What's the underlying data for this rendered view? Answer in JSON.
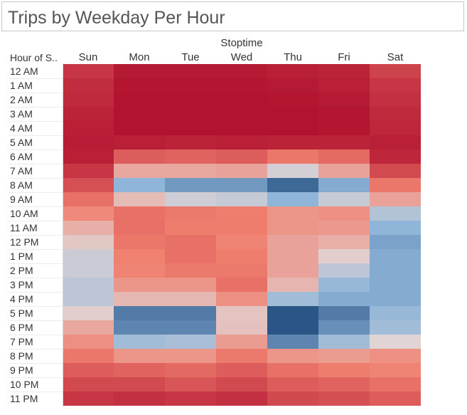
{
  "title": "Trips by Weekday Per Hour",
  "chart_data": {
    "type": "heatmap",
    "title": "Trips by Weekday Per Hour",
    "column_axis_label": "Stoptime",
    "row_axis_label": "Hour of S..",
    "columns": [
      "Sun",
      "Mon",
      "Tue",
      "Wed",
      "Thu",
      "Fri",
      "Sat"
    ],
    "rows": [
      "12 AM",
      "1 AM",
      "2 AM",
      "3 AM",
      "4 AM",
      "5 AM",
      "6 AM",
      "7 AM",
      "8 AM",
      "9 AM",
      "10 AM",
      "11 AM",
      "12 PM",
      "1 PM",
      "2 PM",
      "3 PM",
      "4 PM",
      "5 PM",
      "6 PM",
      "7 PM",
      "8 PM",
      "9 PM",
      "10 PM",
      "11 PM"
    ],
    "color_scale": {
      "low": "#b0102e",
      "mid_low": "#f08070",
      "mid": "#e0d4d4",
      "mid_high": "#8fb5d8",
      "high": "#2a5586"
    },
    "values": [
      [
        0.12,
        0.03,
        0.03,
        0.03,
        0.05,
        0.06,
        0.16
      ],
      [
        0.09,
        0.02,
        0.02,
        0.02,
        0.03,
        0.05,
        0.12
      ],
      [
        0.08,
        0.01,
        0.01,
        0.01,
        0.02,
        0.03,
        0.1
      ],
      [
        0.06,
        0.01,
        0.01,
        0.01,
        0.01,
        0.02,
        0.08
      ],
      [
        0.05,
        0.01,
        0.01,
        0.01,
        0.01,
        0.02,
        0.07
      ],
      [
        0.04,
        0.05,
        0.06,
        0.05,
        0.06,
        0.06,
        0.05
      ],
      [
        0.05,
        0.24,
        0.26,
        0.24,
        0.32,
        0.28,
        0.07
      ],
      [
        0.12,
        0.48,
        0.48,
        0.46,
        0.65,
        0.46,
        0.18
      ],
      [
        0.2,
        0.8,
        0.86,
        0.86,
        0.96,
        0.82,
        0.32
      ],
      [
        0.3,
        0.54,
        0.66,
        0.68,
        0.8,
        0.68,
        0.46
      ],
      [
        0.38,
        0.3,
        0.33,
        0.34,
        0.42,
        0.4,
        0.72
      ],
      [
        0.5,
        0.3,
        0.34,
        0.34,
        0.42,
        0.43,
        0.8
      ],
      [
        0.58,
        0.32,
        0.3,
        0.36,
        0.46,
        0.5,
        0.84
      ],
      [
        0.67,
        0.35,
        0.3,
        0.34,
        0.46,
        0.6,
        0.82
      ],
      [
        0.67,
        0.36,
        0.33,
        0.33,
        0.46,
        0.7,
        0.82
      ],
      [
        0.7,
        0.42,
        0.42,
        0.3,
        0.52,
        0.78,
        0.82
      ],
      [
        0.7,
        0.53,
        0.53,
        0.4,
        0.76,
        0.82,
        0.82
      ],
      [
        0.6,
        0.92,
        0.92,
        0.57,
        1.0,
        0.92,
        0.78
      ],
      [
        0.48,
        0.9,
        0.9,
        0.56,
        1.0,
        0.88,
        0.76
      ],
      [
        0.4,
        0.76,
        0.74,
        0.44,
        0.9,
        0.76,
        0.62
      ],
      [
        0.32,
        0.42,
        0.42,
        0.33,
        0.42,
        0.44,
        0.4
      ],
      [
        0.24,
        0.26,
        0.28,
        0.24,
        0.3,
        0.34,
        0.36
      ],
      [
        0.18,
        0.18,
        0.22,
        0.18,
        0.24,
        0.26,
        0.3
      ],
      [
        0.12,
        0.1,
        0.12,
        0.1,
        0.18,
        0.2,
        0.24
      ]
    ]
  }
}
